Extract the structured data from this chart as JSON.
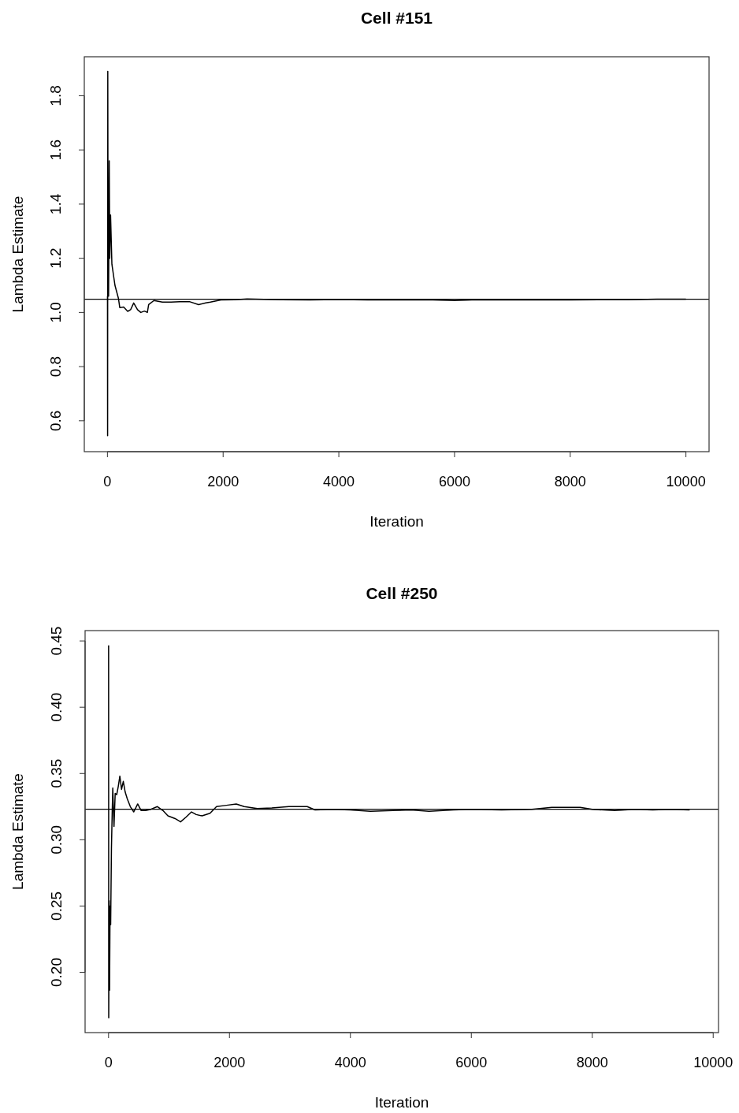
{
  "chart_data": [
    {
      "type": "line",
      "title": "Cell #151",
      "xlabel": "Iteration",
      "ylabel": "Lambda Estimate",
      "xlim": [
        -400,
        10400
      ],
      "ylim": [
        0.486,
        1.944
      ],
      "xticks": [
        0,
        2000,
        4000,
        6000,
        8000,
        10000
      ],
      "yticks": [
        {
          "value": 0.6,
          "label": "0.6"
        },
        {
          "value": 0.8,
          "label": "0.8"
        },
        {
          "value": 1.0,
          "label": "1.0"
        },
        {
          "value": 1.2,
          "label": "1.2"
        },
        {
          "value": 1.4,
          "label": "1.4"
        },
        {
          "value": 1.6,
          "label": "1.6"
        },
        {
          "value": 1.8,
          "label": "1.8"
        }
      ],
      "grid": false,
      "marker": "none",
      "line_style": "solid",
      "ref_lines": [
        {
          "axis": "y",
          "value": 1.049,
          "color": "#000000"
        }
      ],
      "series": [
        {
          "color": "#000000",
          "x": [
            1,
            3,
            6,
            10,
            20,
            31,
            40,
            54,
            77,
            130,
            190,
            213,
            280,
            350,
            400,
            454,
            520,
            577,
            640,
            690,
            713,
            804,
            950,
            1099,
            1250,
            1417,
            1576,
            1700,
            1780,
            1962,
            2200,
            2415,
            3000,
            3500,
            4000,
            4500,
            5000,
            5500,
            6000,
            6300,
            6600,
            7000,
            7500,
            8000,
            8500,
            9000,
            9500,
            10000
          ],
          "values": [
            1.06,
            0.545,
            1.89,
            1.28,
            1.06,
            1.56,
            1.2,
            1.36,
            1.178,
            1.1,
            1.052,
            1.018,
            1.02,
            1.004,
            1.01,
            1.035,
            1.01,
            1.0,
            1.005,
            1.0,
            1.029,
            1.044,
            1.038,
            1.038,
            1.04,
            1.04,
            1.029,
            1.035,
            1.038,
            1.046,
            1.047,
            1.05,
            1.047,
            1.046,
            1.048,
            1.046,
            1.046,
            1.047,
            1.044,
            1.046,
            1.047,
            1.046,
            1.046,
            1.046,
            1.047,
            1.047,
            1.049,
            1.049
          ]
        }
      ]
    },
    {
      "type": "line",
      "title": "Cell #250",
      "xlabel": "Iteration",
      "ylabel": "Lambda Estimate",
      "xlim": [
        -388,
        10088
      ],
      "ylim": [
        0.1545,
        0.4578
      ],
      "xticks": [
        0,
        2000,
        4000,
        6000,
        8000,
        10000
      ],
      "yticks": [
        {
          "value": 0.2,
          "label": "0.20"
        },
        {
          "value": 0.25,
          "label": "0.25"
        },
        {
          "value": 0.3,
          "label": "0.30"
        },
        {
          "value": 0.35,
          "label": "0.35"
        },
        {
          "value": 0.4,
          "label": "0.40"
        },
        {
          "value": 0.45,
          "label": "0.45"
        }
      ],
      "grid": false,
      "marker": "none",
      "line_style": "solid",
      "ref_lines": [
        {
          "axis": "y",
          "value": 0.323,
          "color": "#000000"
        }
      ],
      "series": [
        {
          "color": "#000000",
          "x": [
            1,
            3,
            10,
            17,
            25,
            35,
            48,
            60,
            70,
            90,
            110,
            135,
            160,
            187,
            215,
            244,
            275,
            309,
            360,
            417,
            482,
            540,
            613,
            700,
            808,
            900,
            982,
            1100,
            1191,
            1280,
            1372,
            1450,
            1547,
            1678,
            1786,
            1950,
            2112,
            2243,
            2460,
            2700,
            2982,
            3285,
            3416,
            3700,
            4000,
            4330,
            4700,
            5000,
            5300,
            5700,
            6000,
            6500,
            7000,
            7330,
            7600,
            7800,
            8000,
            8370,
            8700,
            9000,
            9300,
            9610
          ],
          "values": [
            0.4466,
            0.1657,
            0.254,
            0.1865,
            0.25,
            0.236,
            0.294,
            0.32,
            0.339,
            0.31,
            0.335,
            0.334,
            0.34,
            0.348,
            0.338,
            0.344,
            0.336,
            0.331,
            0.325,
            0.321,
            0.327,
            0.322,
            0.322,
            0.323,
            0.325,
            0.322,
            0.318,
            0.316,
            0.3135,
            0.317,
            0.321,
            0.319,
            0.318,
            0.32,
            0.325,
            0.326,
            0.327,
            0.325,
            0.3235,
            0.324,
            0.325,
            0.325,
            0.3225,
            0.323,
            0.3225,
            0.3215,
            0.322,
            0.3225,
            0.3215,
            0.3225,
            0.323,
            0.3225,
            0.323,
            0.3245,
            0.3245,
            0.3245,
            0.323,
            0.322,
            0.323,
            0.3225,
            0.323,
            0.3225
          ]
        }
      ]
    }
  ]
}
